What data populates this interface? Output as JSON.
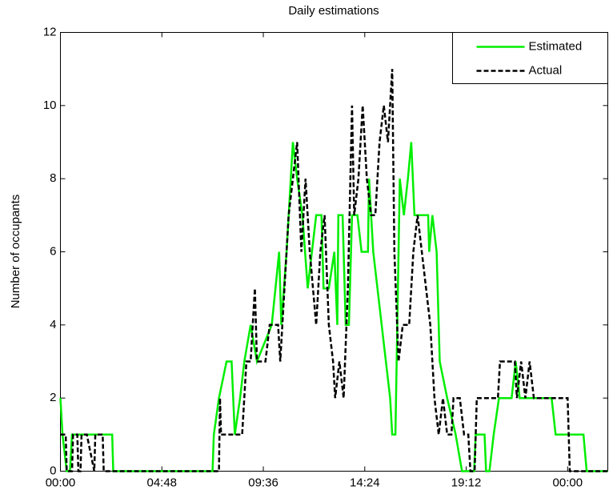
{
  "chart_data": {
    "type": "line",
    "title": "Daily estimations",
    "y_label": "Number of occupants",
    "xlim": [
      0,
      25.9
    ],
    "ylim": [
      0,
      12
    ],
    "xticks": [
      {
        "value": 0,
        "label": "00:00"
      },
      {
        "value": 4.8,
        "label": "04:48"
      },
      {
        "value": 9.6,
        "label": "09:36"
      },
      {
        "value": 14.4,
        "label": "14:24"
      },
      {
        "value": 19.2,
        "label": "19:12"
      },
      {
        "value": 24,
        "label": "00:00"
      }
    ],
    "yticks": [
      0,
      2,
      4,
      6,
      8,
      10,
      12
    ],
    "legend": "top-right",
    "series": [
      {
        "name": "Estimated",
        "color": "#00ee00",
        "dash": false,
        "x": [
          0,
          0.1,
          0.3,
          0.45,
          0.55,
          2.45,
          2.5,
          7.2,
          7.26,
          7.5,
          7.86,
          8.1,
          8.25,
          8.5,
          8.7,
          9.0,
          9.3,
          10.0,
          10.35,
          10.45,
          10.7,
          11.0,
          11.2,
          11.45,
          11.7,
          12.1,
          12.35,
          12.45,
          12.7,
          12.96,
          13.1,
          13.15,
          13.35,
          13.5,
          13.65,
          13.8,
          14.05,
          14.25,
          14.55,
          14.6,
          14.8,
          15.4,
          15.6,
          15.7,
          15.85,
          16.06,
          16.25,
          16.44,
          16.6,
          16.75,
          17.4,
          17.45,
          17.6,
          17.8,
          17.95,
          18.3,
          18.7,
          19.0,
          19.575,
          19.65,
          20.07,
          20.14,
          20.3,
          20.5,
          20.75,
          21.35,
          21.54,
          21.73,
          23.24,
          23.43,
          24.75,
          24.9,
          25.9
        ],
        "values": [
          2,
          1,
          0,
          0,
          1,
          1,
          0,
          0,
          1,
          2,
          3,
          3,
          1,
          2,
          3,
          4,
          3,
          4,
          6,
          4,
          6,
          9,
          8,
          7,
          5,
          7,
          7,
          5,
          5,
          6,
          4,
          7,
          7,
          4,
          4,
          7,
          7,
          6,
          6,
          8,
          6,
          3,
          2,
          1,
          1,
          8,
          7,
          8,
          9,
          7,
          7,
          6,
          7,
          6,
          3,
          2,
          1,
          0,
          0,
          1,
          1,
          0,
          0,
          1,
          2,
          2,
          3,
          2,
          2,
          1,
          1,
          0,
          0
        ]
      },
      {
        "name": "Actual",
        "color": "#000000",
        "dash": true,
        "x": [
          0,
          0.25,
          0.3,
          0.55,
          0.6,
          0.8,
          0.85,
          0.95,
          1.0,
          1.25,
          1.6,
          1.65,
          2.0,
          2.05,
          7.5,
          7.55,
          7.6,
          8.6,
          8.8,
          9.0,
          9.1,
          9.2,
          9.3,
          9.7,
          9.9,
          10.3,
          10.4,
          10.8,
          11.2,
          11.4,
          11.6,
          11.8,
          12.1,
          12.3,
          12.5,
          12.7,
          12.9,
          13.0,
          13.2,
          13.4,
          13.6,
          13.8,
          13.9,
          14.1,
          14.3,
          14.5,
          14.7,
          14.9,
          15.1,
          15.3,
          15.5,
          15.7,
          15.8,
          16.0,
          16.2,
          16.5,
          16.7,
          16.9,
          17.1,
          17.3,
          17.5,
          17.7,
          17.9,
          18.1,
          18.3,
          18.5,
          18.6,
          18.9,
          19.1,
          19.3,
          19.4,
          19.6,
          19.7,
          20.7,
          20.8,
          21.5,
          21.6,
          21.8,
          22.0,
          22.2,
          22.4,
          24.0,
          24.1,
          25.9
        ],
        "values": [
          1,
          1,
          0,
          0,
          1,
          1,
          0,
          0,
          1,
          1,
          0,
          1,
          1,
          0,
          0,
          2,
          1,
          1,
          3,
          3,
          4,
          5,
          3,
          3,
          4,
          4,
          3,
          7,
          9,
          6,
          8,
          6,
          4,
          6,
          7,
          4,
          3,
          2,
          3,
          2,
          5,
          10,
          7,
          8,
          10,
          8,
          7,
          7,
          9,
          10,
          9,
          11,
          6,
          3,
          4,
          4,
          6,
          7,
          6,
          5,
          4,
          2,
          1,
          2,
          1,
          1,
          2,
          2,
          1,
          1,
          0,
          0,
          2,
          2,
          3,
          3,
          2,
          3,
          2,
          3,
          2,
          2,
          0,
          0
        ]
      }
    ]
  }
}
